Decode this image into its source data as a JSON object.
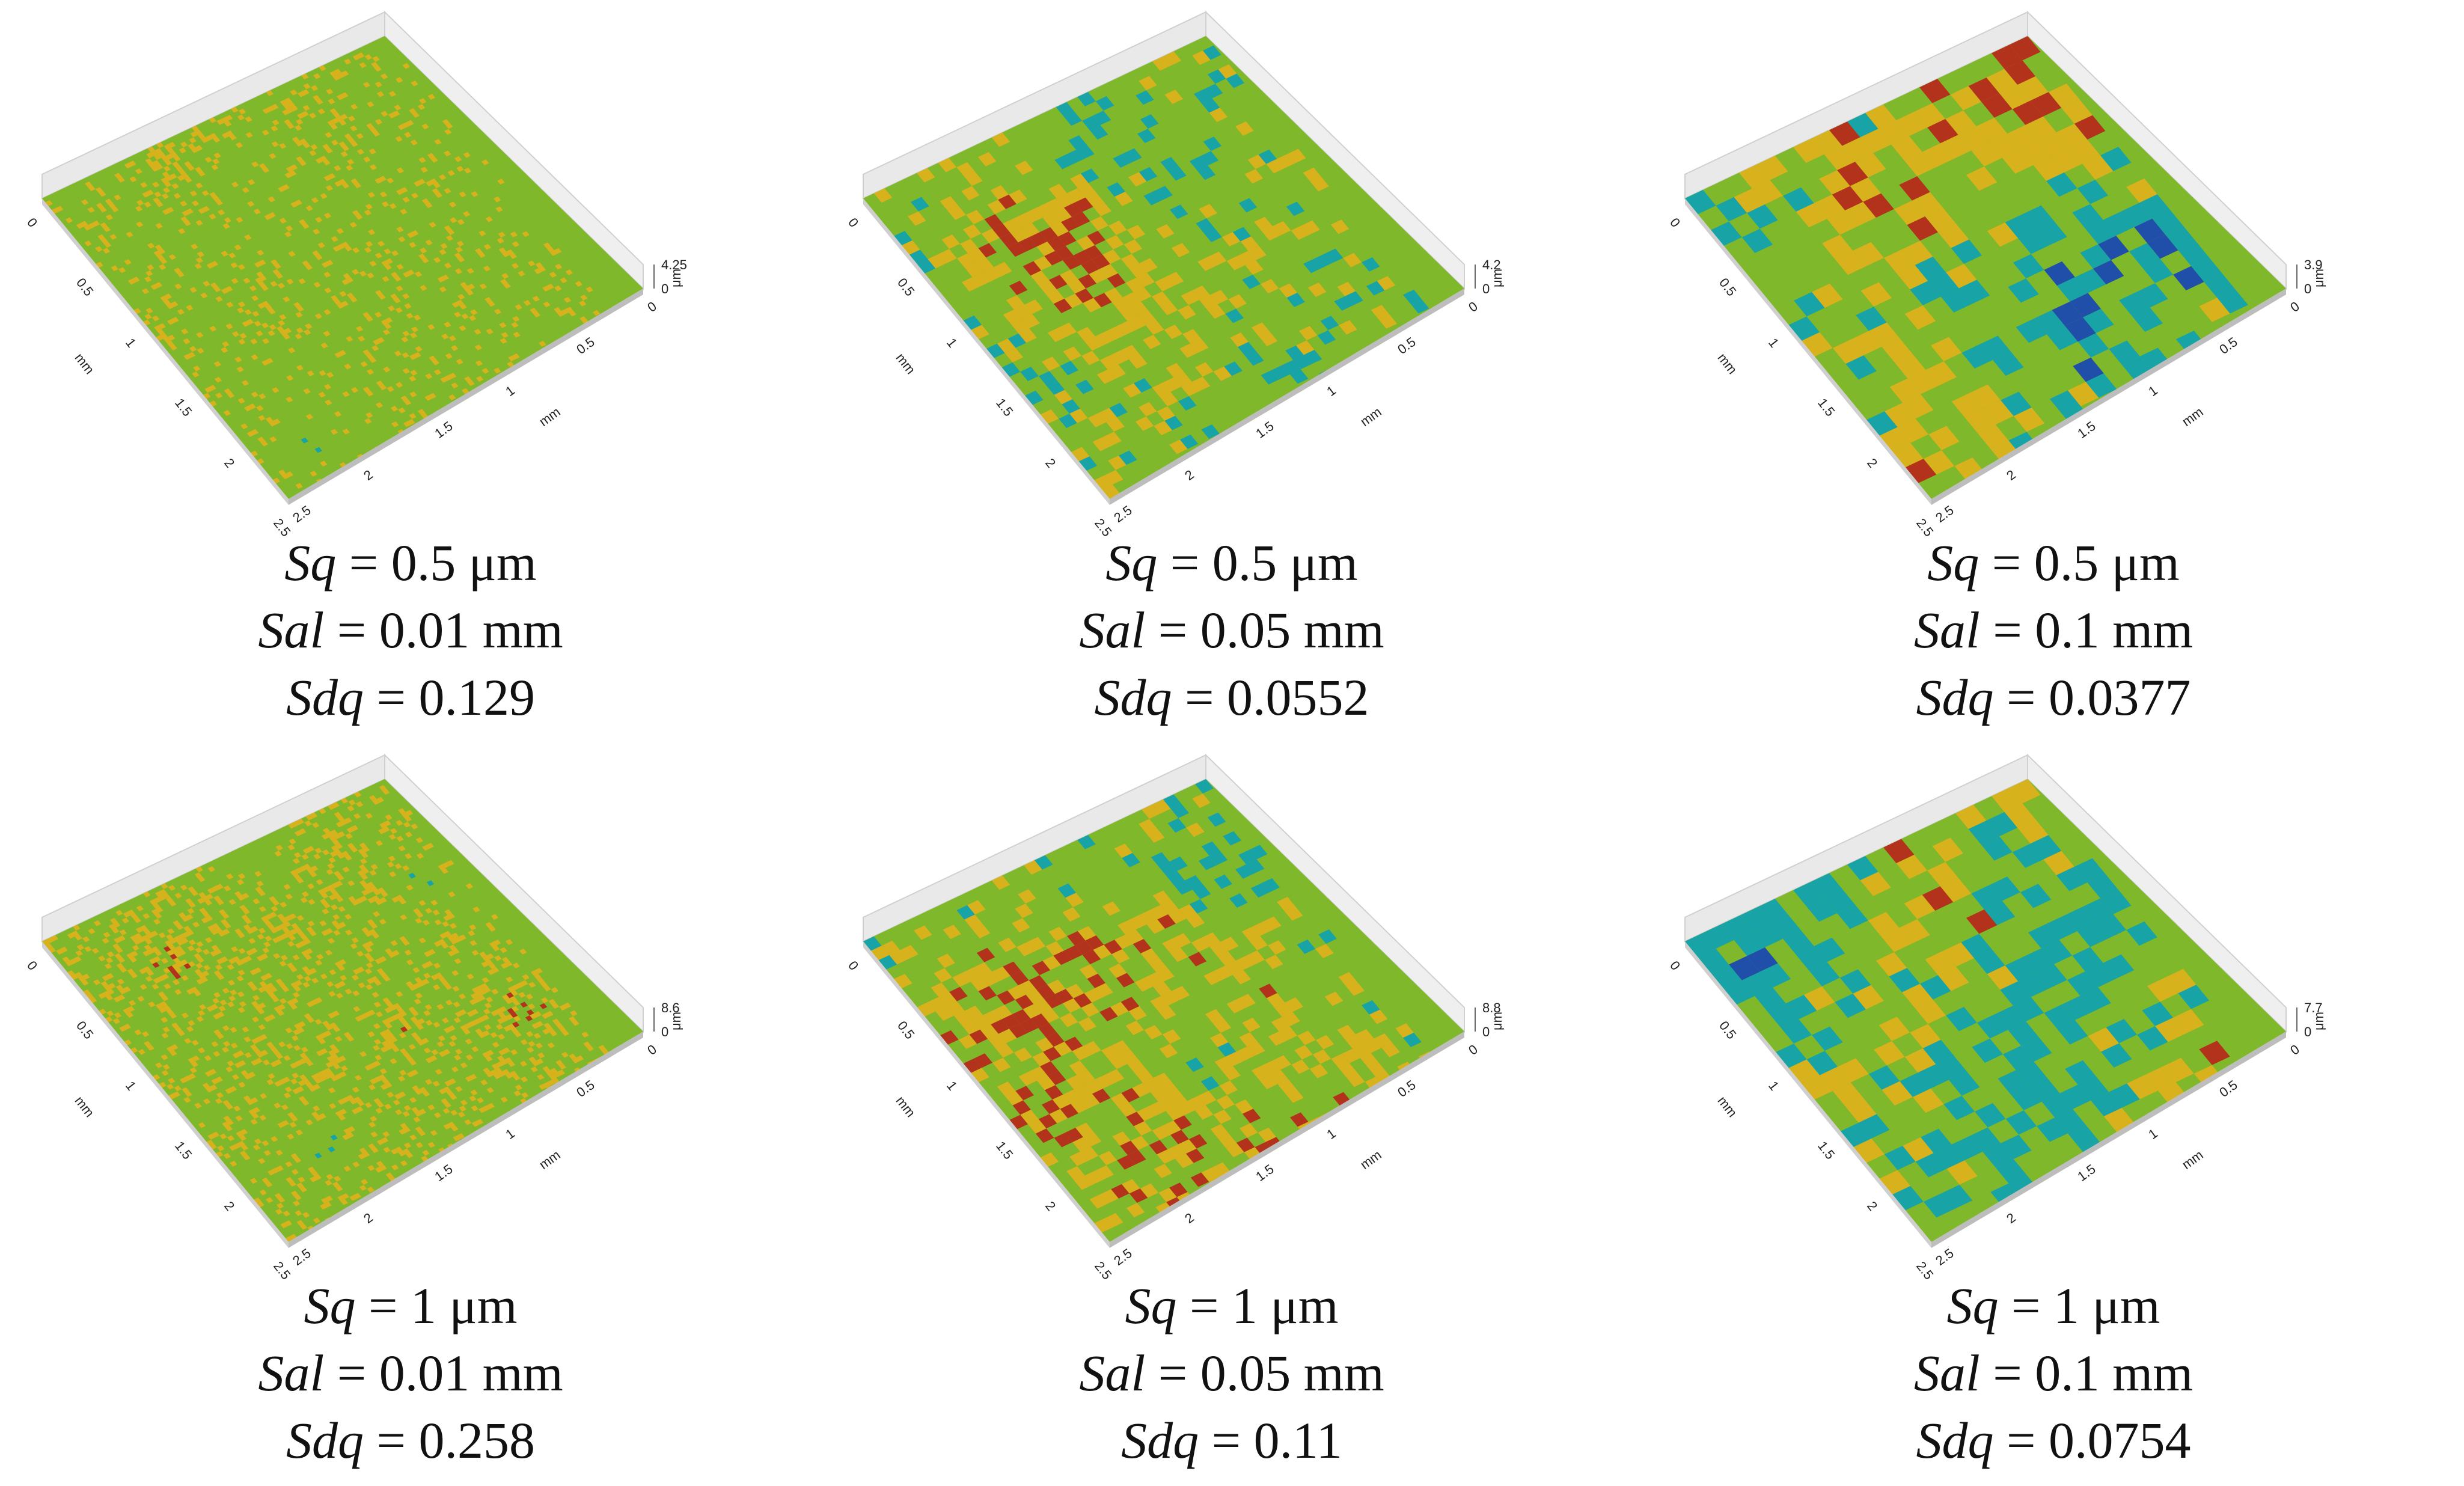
{
  "colors": {
    "surface_low": "#1f4fa8",
    "surface_mid_low": "#18a3a6",
    "surface_mid": "#7fb82a",
    "surface_mid_high": "#d8b21c",
    "surface_high": "#b3321b",
    "frame": "#d0d0d0"
  },
  "panels": [
    {
      "sq": "Sq = 0.5 μm",
      "sq_sym": "Sq",
      "sq_val": " = 0.5 μm",
      "sal_sym": "Sal",
      "sal_val": " = 0.01 mm",
      "sdq_sym": "Sdq",
      "sdq_val": " = 0.129",
      "zmax": "4.25",
      "zmin": "0",
      "zunit": "μm",
      "axis_unit": "mm",
      "left_ticks": [
        "0",
        "0.5",
        "1",
        "1.5",
        "2",
        "2.5"
      ],
      "right_ticks": [
        "2.5",
        "2",
        "1.5",
        "1",
        "0.5",
        "0"
      ],
      "texture": {
        "scale": 0.9,
        "mix": [
          0.05,
          0.1,
          0.55,
          0.2,
          0.1
        ]
      }
    },
    {
      "sq_sym": "Sq",
      "sq_val": " = 0.5 μm",
      "sal_sym": "Sal",
      "sal_val": " = 0.05 mm",
      "sdq_sym": "Sdq",
      "sdq_val": " = 0.0552",
      "zmax": "4.2",
      "zmin": "0",
      "zunit": "μm",
      "axis_unit": "mm",
      "left_ticks": [
        "0",
        "0.5",
        "1",
        "1.5",
        "2",
        "2.5"
      ],
      "right_ticks": [
        "2.5",
        "2",
        "1.5",
        "1",
        "0.5",
        "0"
      ],
      "texture": {
        "scale": 2.2,
        "mix": [
          0.05,
          0.25,
          0.4,
          0.2,
          0.1
        ]
      }
    },
    {
      "sq_sym": "Sq",
      "sq_val": " = 0.5 μm",
      "sal_sym": "Sal",
      "sal_val": " = 0.1 mm",
      "sdq_sym": "Sdq",
      "sdq_val": " = 0.0377",
      "zmax": "3.9",
      "zmin": "0",
      "zunit": "μm",
      "axis_unit": "mm",
      "left_ticks": [
        "0",
        "0.5",
        "1",
        "1.5",
        "2",
        "2.5"
      ],
      "right_ticks": [
        "2.5",
        "2",
        "1.5",
        "1",
        "0.5",
        "0"
      ],
      "texture": {
        "scale": 3.6,
        "mix": [
          0.08,
          0.25,
          0.3,
          0.2,
          0.17
        ]
      }
    },
    {
      "sq_sym": "Sq",
      "sq_val": " = 1 μm",
      "sal_sym": "Sal",
      "sal_val": " = 0.01 mm",
      "sdq_sym": "Sdq",
      "sdq_val": " = 0.258",
      "zmax": "8.6",
      "zmin": "0",
      "zunit": "μm",
      "axis_unit": "mm",
      "left_ticks": [
        "0",
        "0.5",
        "1",
        "1.5",
        "2",
        "2.5"
      ],
      "right_ticks": [
        "2.5",
        "2",
        "1.5",
        "1",
        "0.5",
        "0"
      ],
      "texture": {
        "scale": 0.9,
        "mix": [
          0.05,
          0.1,
          0.5,
          0.2,
          0.15
        ]
      }
    },
    {
      "sq_sym": "Sq",
      "sq_val": " = 1 μm",
      "sal_sym": "Sal",
      "sal_val": " = 0.05 mm",
      "sdq_sym": "Sdq",
      "sdq_val": " = 0.11",
      "zmax": "8.8",
      "zmin": "0",
      "zunit": "μm",
      "axis_unit": "mm",
      "left_ticks": [
        "0",
        "0.5",
        "1",
        "1.5",
        "2",
        "2.5"
      ],
      "right_ticks": [
        "2.5",
        "2",
        "1.5",
        "1",
        "0.5",
        "0"
      ],
      "texture": {
        "scale": 2.2,
        "mix": [
          0.05,
          0.25,
          0.4,
          0.18,
          0.12
        ]
      }
    },
    {
      "sq_sym": "Sq",
      "sq_val": " = 1 μm",
      "sal_sym": "Sal",
      "sal_val": " = 0.1 mm",
      "sdq_sym": "Sdq",
      "sdq_val": " = 0.0754",
      "zmax": "7.7",
      "zmin": "0",
      "zunit": "μm",
      "axis_unit": "mm",
      "left_ticks": [
        "0",
        "0.5",
        "1",
        "1.5",
        "2",
        "2.5"
      ],
      "right_ticks": [
        "2.5",
        "2",
        "1.5",
        "1",
        "0.5",
        "0"
      ],
      "texture": {
        "scale": 3.6,
        "mix": [
          0.12,
          0.3,
          0.3,
          0.16,
          0.12
        ]
      }
    }
  ]
}
